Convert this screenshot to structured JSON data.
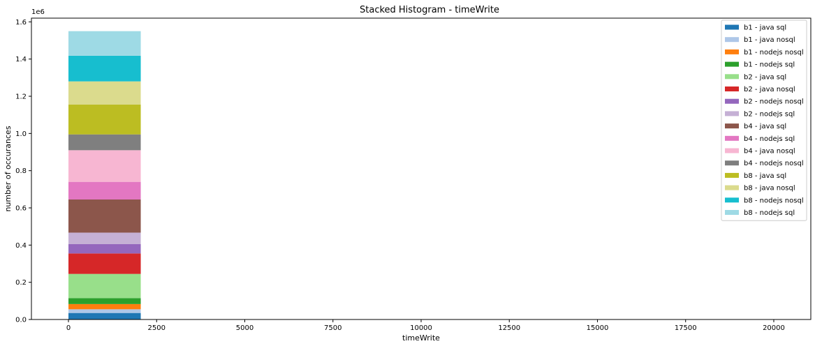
{
  "chart_data": {
    "type": "bar",
    "stacked": true,
    "title": "Stacked Histogram - timeWrite",
    "xlabel": "timeWrite",
    "ylabel": "number of occurances",
    "y_offset_label": "1e6",
    "xlim": [
      -1050,
      21050
    ],
    "ylim": [
      0,
      1.62
    ],
    "x_ticks": [
      0,
      2500,
      5000,
      7500,
      10000,
      12500,
      15000,
      17500,
      20000
    ],
    "x_tick_labels": [
      "0",
      "2500",
      "5000",
      "7500",
      "10000",
      "12500",
      "15000",
      "17500",
      "20000"
    ],
    "y_ticks": [
      0,
      0.2,
      0.4,
      0.6,
      0.8,
      1.0,
      1.2,
      1.4,
      1.6
    ],
    "y_tick_labels": [
      "0.0",
      "0.2",
      "0.4",
      "0.6",
      "0.8",
      "1.0",
      "1.2",
      "1.4",
      "1.6"
    ],
    "grid": false,
    "legend_position": "top-right",
    "bin": [
      0,
      2050
    ],
    "series": [
      {
        "name": "b1 - java sql",
        "value": 0.035,
        "color": "#1f77b4"
      },
      {
        "name": "b1 - java nosql",
        "value": 0.02,
        "color": "#aec7e8"
      },
      {
        "name": "b1 - nodejs nosql",
        "value": 0.028,
        "color": "#ff7f0e"
      },
      {
        "name": "b1 - nodejs sql",
        "value": 0.032,
        "color": "#2ca02c"
      },
      {
        "name": "b2 - java sql",
        "value": 0.13,
        "color": "#98df8a"
      },
      {
        "name": "b2 - java nosql",
        "value": 0.11,
        "color": "#d62728"
      },
      {
        "name": "b2 - nodejs nosql",
        "value": 0.05,
        "color": "#9467bd"
      },
      {
        "name": "b2 - nodejs sql",
        "value": 0.062,
        "color": "#c5b0d5"
      },
      {
        "name": "b4 - java sql",
        "value": 0.178,
        "color": "#8c564b"
      },
      {
        "name": "b4 - nodejs sql",
        "value": 0.095,
        "color": "#e377c2"
      },
      {
        "name": "b4 - java nosql",
        "value": 0.17,
        "color": "#f7b6d2"
      },
      {
        "name": "b4 - nodejs nosql",
        "value": 0.085,
        "color": "#7f7f7f"
      },
      {
        "name": "b8 - java sql",
        "value": 0.16,
        "color": "#bcbd22"
      },
      {
        "name": "b8 - java nosql",
        "value": 0.125,
        "color": "#dbdb8d"
      },
      {
        "name": "b8 - nodejs nosql",
        "value": 0.138,
        "color": "#17becf"
      },
      {
        "name": "b8 - nodejs sql",
        "value": 0.132,
        "color": "#9edae5"
      }
    ]
  }
}
